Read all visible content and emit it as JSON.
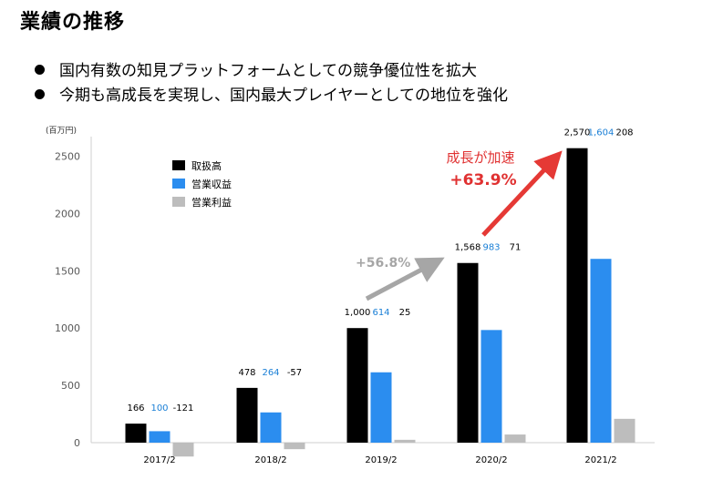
{
  "header": {
    "title": "業績の推移",
    "bullets": [
      "国内有数の知見プラットフォームとしての競争優位性を拡大",
      "今期も高成長を実現し、国内最大プレイヤーとしての地位を強化"
    ]
  },
  "chart_data": {
    "type": "bar",
    "unit_label": "(百万円)",
    "categories": [
      "2017/2",
      "2018/2",
      "2019/2",
      "2020/2",
      "2021/2"
    ],
    "series": [
      {
        "name": "取扱高",
        "color": "#000000",
        "label_color": "#000000",
        "values": [
          166,
          478,
          1000,
          1568,
          2570
        ],
        "labels": [
          "166",
          "478",
          "1,000",
          "1,568",
          "2,570"
        ]
      },
      {
        "name": "営業収益",
        "color": "#2b8def",
        "label_color": "#1a7fd6",
        "values": [
          100,
          264,
          614,
          983,
          1604
        ],
        "labels": [
          "100",
          "264",
          "614",
          "983",
          "1,604"
        ]
      },
      {
        "name": "営業利益",
        "color": "#bdbdbd",
        "label_color": "#000000",
        "values": [
          -121,
          -57,
          25,
          71,
          208
        ],
        "labels": [
          "-121",
          "-57",
          "25",
          "71",
          "208"
        ]
      }
    ],
    "yticks": [
      0,
      500,
      1000,
      1500,
      2000,
      2500
    ],
    "ylim": [
      -150,
      2600
    ],
    "legend_position": "top-left",
    "annotations": [
      {
        "text": "+56.8%",
        "color": "#a6a6a6"
      },
      {
        "text": "成長が加速",
        "color": "#e03131"
      },
      {
        "text": "+63.9%",
        "color": "#e03131"
      }
    ]
  }
}
